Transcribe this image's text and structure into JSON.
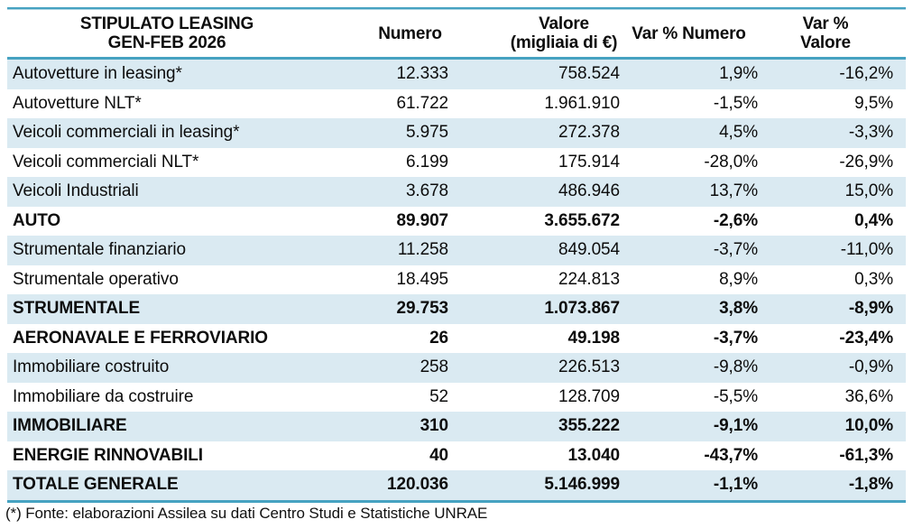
{
  "colors": {
    "accent_border": "#46A2C1",
    "row_shade": "#DAEAF2"
  },
  "table": {
    "header": {
      "title_line1": "STIPULATO LEASING",
      "title_line2": "GEN-FEB 2026",
      "col_numero": "Numero",
      "col_valore_line1": "Valore",
      "col_valore_line2": "(migliaia di €)",
      "col_var_numero": "Var % Numero",
      "col_var_valore_line1": "Var %",
      "col_var_valore_line2": "Valore"
    },
    "rows": [
      {
        "label": "Autovetture in leasing*",
        "numero": "12.333",
        "valore": "758.524",
        "var_numero": "1,9%",
        "var_valore": "-16,2%"
      },
      {
        "label": "Autovetture NLT*",
        "numero": "61.722",
        "valore": "1.961.910",
        "var_numero": "-1,5%",
        "var_valore": "9,5%"
      },
      {
        "label": "Veicoli commerciali in leasing*",
        "numero": "5.975",
        "valore": "272.378",
        "var_numero": "4,5%",
        "var_valore": "-3,3%"
      },
      {
        "label": "Veicoli commerciali NLT*",
        "numero": "6.199",
        "valore": "175.914",
        "var_numero": "-28,0%",
        "var_valore": "-26,9%"
      },
      {
        "label": "Veicoli Industriali",
        "numero": "3.678",
        "valore": "486.946",
        "var_numero": "13,7%",
        "var_valore": "15,0%"
      },
      {
        "label": "AUTO",
        "numero": "89.907",
        "valore": "3.655.672",
        "var_numero": "-2,6%",
        "var_valore": "0,4%"
      },
      {
        "label": "Strumentale finanziario",
        "numero": "11.258",
        "valore": "849.054",
        "var_numero": "-3,7%",
        "var_valore": "-11,0%"
      },
      {
        "label": "Strumentale operativo",
        "numero": "18.495",
        "valore": "224.813",
        "var_numero": "8,9%",
        "var_valore": "0,3%"
      },
      {
        "label": "STRUMENTALE",
        "numero": "29.753",
        "valore": "1.073.867",
        "var_numero": "3,8%",
        "var_valore": "-8,9%"
      },
      {
        "label": "AERONAVALE E FERROVIARIO",
        "numero": "26",
        "valore": "49.198",
        "var_numero": "-3,7%",
        "var_valore": "-23,4%"
      },
      {
        "label": "Immobiliare costruito",
        "numero": "258",
        "valore": "226.513",
        "var_numero": "-9,8%",
        "var_valore": "-0,9%"
      },
      {
        "label": "Immobiliare da costruire",
        "numero": "52",
        "valore": "128.709",
        "var_numero": "-5,5%",
        "var_valore": "36,6%"
      },
      {
        "label": "IMMOBILIARE",
        "numero": "310",
        "valore": "355.222",
        "var_numero": "-9,1%",
        "var_valore": "10,0%"
      },
      {
        "label": "ENERGIE RINNOVABILI",
        "numero": "40",
        "valore": "13.040",
        "var_numero": "-43,7%",
        "var_valore": "-61,3%"
      },
      {
        "label": "TOTALE GENERALE",
        "numero": "120.036",
        "valore": "5.146.999",
        "var_numero": "-1,1%",
        "var_valore": "-1,8%"
      }
    ],
    "footnote": "(*) Fonte: elaborazioni Assilea su dati Centro Studi e Statistiche UNRAE"
  }
}
